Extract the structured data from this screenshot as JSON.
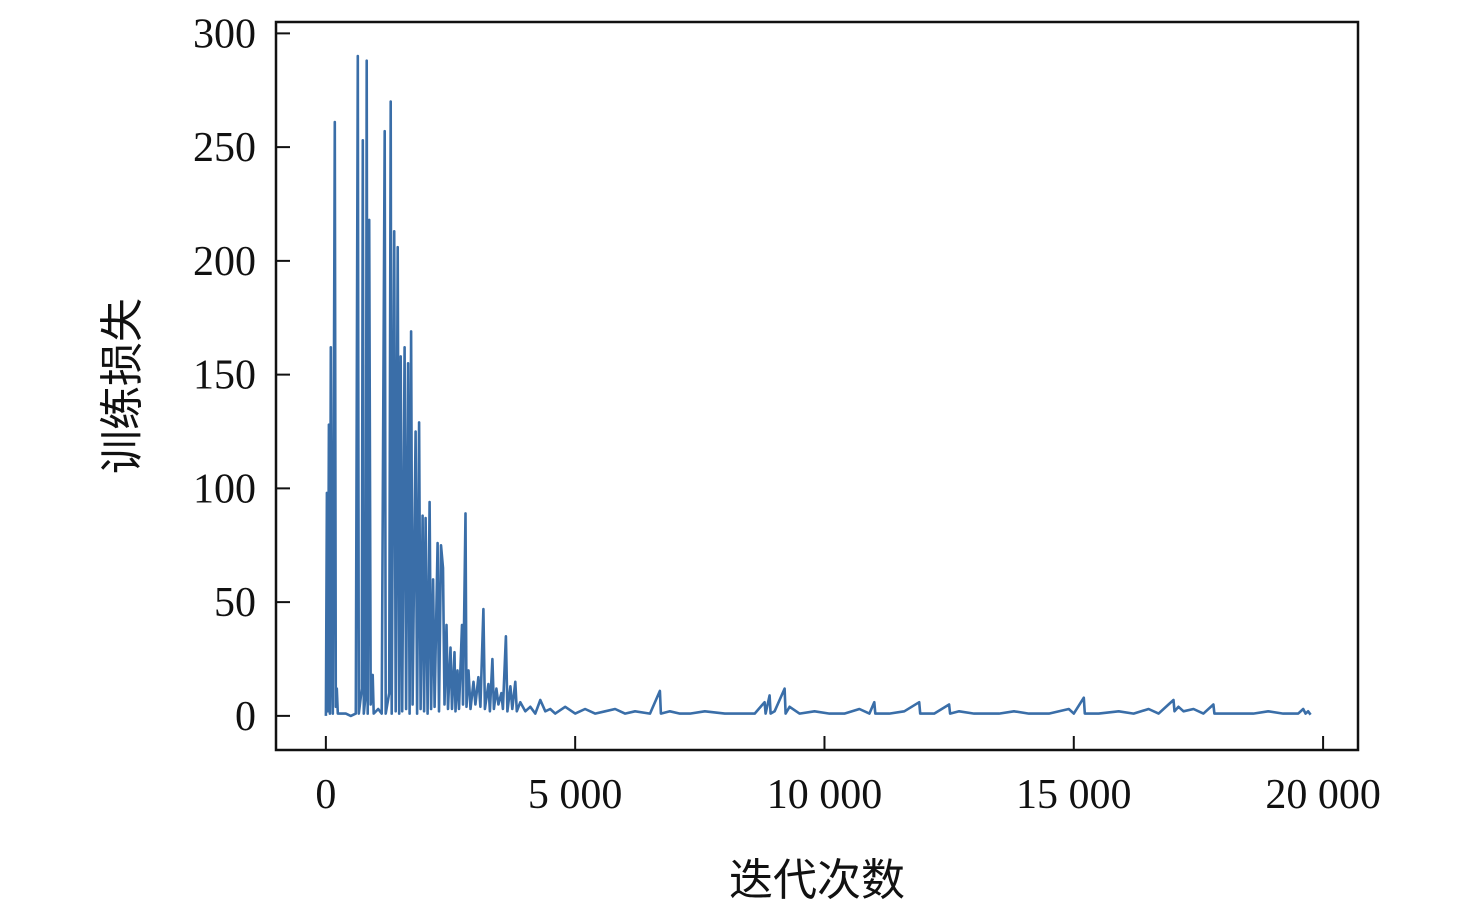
{
  "chart_data": {
    "type": "line",
    "title": "",
    "xlabel": "迭代次数",
    "ylabel": "训练损失",
    "xlim": [
      -1000,
      20700
    ],
    "ylim": [
      -15,
      305
    ],
    "grid": false,
    "legend": "none",
    "color": "#3a6ea8",
    "x_ticks": [
      {
        "value": 0,
        "label": "0"
      },
      {
        "value": 5000,
        "label": "5 000"
      },
      {
        "value": 10000,
        "label": "10 000"
      },
      {
        "value": 15000,
        "label": "15 000"
      },
      {
        "value": 20000,
        "label": "20 000"
      }
    ],
    "y_ticks": [
      {
        "value": 0,
        "label": "0"
      },
      {
        "value": 50,
        "label": "50"
      },
      {
        "value": 100,
        "label": "100"
      },
      {
        "value": 150,
        "label": "150"
      },
      {
        "value": 200,
        "label": "200"
      },
      {
        "value": 250,
        "label": "250"
      },
      {
        "value": 300,
        "label": "300"
      }
    ],
    "series": [
      {
        "points": [
          [
            0,
            0
          ],
          [
            20,
            98
          ],
          [
            40,
            2
          ],
          [
            60,
            128
          ],
          [
            80,
            1
          ],
          [
            100,
            162
          ],
          [
            120,
            30
          ],
          [
            140,
            1
          ],
          [
            180,
            261
          ],
          [
            200,
            4
          ],
          [
            220,
            12
          ],
          [
            240,
            1
          ],
          [
            400,
            1
          ],
          [
            500,
            0
          ],
          [
            600,
            1
          ],
          [
            640,
            290
          ],
          [
            660,
            1
          ],
          [
            720,
            12
          ],
          [
            740,
            253
          ],
          [
            760,
            1
          ],
          [
            800,
            10
          ],
          [
            820,
            288
          ],
          [
            840,
            1
          ],
          [
            870,
            218
          ],
          [
            900,
            5
          ],
          [
            940,
            18
          ],
          [
            960,
            1
          ],
          [
            1050,
            3
          ],
          [
            1120,
            1
          ],
          [
            1180,
            257
          ],
          [
            1200,
            1
          ],
          [
            1270,
            10
          ],
          [
            1300,
            270
          ],
          [
            1320,
            1
          ],
          [
            1370,
            213
          ],
          [
            1400,
            2
          ],
          [
            1440,
            206
          ],
          [
            1470,
            1
          ],
          [
            1500,
            158
          ],
          [
            1530,
            2
          ],
          [
            1580,
            162
          ],
          [
            1610,
            3
          ],
          [
            1650,
            155
          ],
          [
            1680,
            1
          ],
          [
            1710,
            169
          ],
          [
            1740,
            5
          ],
          [
            1800,
            125
          ],
          [
            1830,
            1
          ],
          [
            1870,
            129
          ],
          [
            1900,
            3
          ],
          [
            1940,
            88
          ],
          [
            1970,
            2
          ],
          [
            2000,
            87
          ],
          [
            2040,
            1
          ],
          [
            2080,
            94
          ],
          [
            2110,
            3
          ],
          [
            2150,
            60
          ],
          [
            2180,
            4
          ],
          [
            2240,
            76
          ],
          [
            2270,
            2
          ],
          [
            2310,
            75
          ],
          [
            2330,
            70
          ],
          [
            2350,
            65
          ],
          [
            2380,
            5
          ],
          [
            2420,
            40
          ],
          [
            2450,
            3
          ],
          [
            2500,
            30
          ],
          [
            2530,
            3
          ],
          [
            2580,
            28
          ],
          [
            2600,
            2
          ],
          [
            2640,
            20
          ],
          [
            2670,
            3
          ],
          [
            2730,
            40
          ],
          [
            2750,
            5
          ],
          [
            2800,
            89
          ],
          [
            2820,
            4
          ],
          [
            2860,
            20
          ],
          [
            2900,
            3
          ],
          [
            2960,
            15
          ],
          [
            3000,
            5
          ],
          [
            3060,
            17
          ],
          [
            3100,
            4
          ],
          [
            3160,
            47
          ],
          [
            3190,
            3
          ],
          [
            3260,
            14
          ],
          [
            3290,
            2
          ],
          [
            3340,
            25
          ],
          [
            3370,
            3
          ],
          [
            3420,
            12
          ],
          [
            3460,
            5
          ],
          [
            3520,
            10
          ],
          [
            3550,
            3
          ],
          [
            3610,
            35
          ],
          [
            3640,
            2
          ],
          [
            3700,
            13
          ],
          [
            3740,
            3
          ],
          [
            3800,
            15
          ],
          [
            3830,
            2
          ],
          [
            3900,
            6
          ],
          [
            4000,
            2
          ],
          [
            4100,
            4
          ],
          [
            4200,
            1
          ],
          [
            4300,
            7
          ],
          [
            4400,
            2
          ],
          [
            4500,
            3
          ],
          [
            4600,
            1
          ],
          [
            4800,
            4
          ],
          [
            5000,
            1
          ],
          [
            5200,
            3
          ],
          [
            5400,
            1
          ],
          [
            5600,
            2
          ],
          [
            5800,
            3
          ],
          [
            6000,
            1
          ],
          [
            6200,
            2
          ],
          [
            6500,
            1
          ],
          [
            6700,
            11
          ],
          [
            6720,
            1
          ],
          [
            6900,
            2
          ],
          [
            7100,
            1
          ],
          [
            7300,
            1
          ],
          [
            7600,
            2
          ],
          [
            8000,
            1
          ],
          [
            8400,
            1
          ],
          [
            8600,
            1
          ],
          [
            8800,
            6
          ],
          [
            8820,
            1
          ],
          [
            8900,
            9
          ],
          [
            8920,
            1
          ],
          [
            9000,
            2
          ],
          [
            9200,
            12
          ],
          [
            9220,
            1
          ],
          [
            9300,
            4
          ],
          [
            9500,
            1
          ],
          [
            9800,
            2
          ],
          [
            10100,
            1
          ],
          [
            10400,
            1
          ],
          [
            10700,
            3
          ],
          [
            10900,
            1
          ],
          [
            11000,
            6
          ],
          [
            11020,
            1
          ],
          [
            11300,
            1
          ],
          [
            11600,
            2
          ],
          [
            11900,
            6
          ],
          [
            11920,
            1
          ],
          [
            12200,
            1
          ],
          [
            12500,
            5
          ],
          [
            12520,
            1
          ],
          [
            12700,
            2
          ],
          [
            13000,
            1
          ],
          [
            13500,
            1
          ],
          [
            13800,
            2
          ],
          [
            14100,
            1
          ],
          [
            14500,
            1
          ],
          [
            14900,
            3
          ],
          [
            15000,
            1
          ],
          [
            15200,
            8
          ],
          [
            15220,
            1
          ],
          [
            15500,
            1
          ],
          [
            15900,
            2
          ],
          [
            16200,
            1
          ],
          [
            16500,
            3
          ],
          [
            16700,
            1
          ],
          [
            16900,
            5
          ],
          [
            17000,
            7
          ],
          [
            17020,
            2
          ],
          [
            17100,
            4
          ],
          [
            17200,
            2
          ],
          [
            17400,
            3
          ],
          [
            17600,
            1
          ],
          [
            17800,
            5
          ],
          [
            17820,
            1
          ],
          [
            18000,
            1
          ],
          [
            18300,
            1
          ],
          [
            18600,
            1
          ],
          [
            18900,
            2
          ],
          [
            19200,
            1
          ],
          [
            19500,
            1
          ],
          [
            19600,
            3
          ],
          [
            19650,
            1
          ],
          [
            19700,
            2
          ],
          [
            19750,
            0.5
          ]
        ]
      }
    ]
  }
}
